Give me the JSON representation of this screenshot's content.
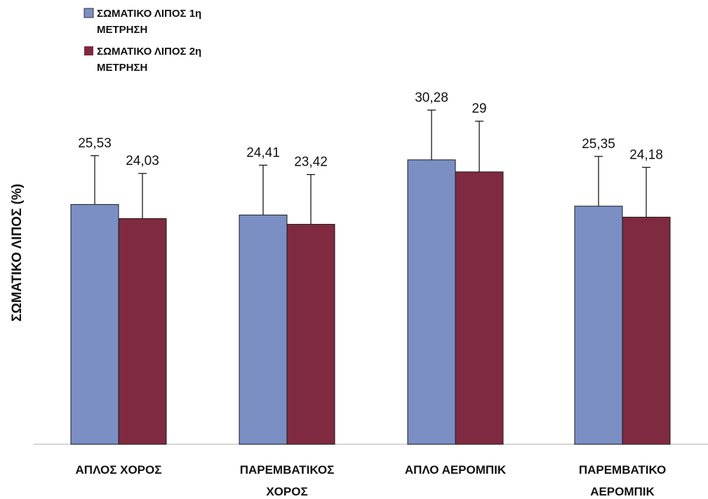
{
  "chart_data": {
    "type": "bar",
    "ylabel": "ΣΩΜΑΤΙΚΟ ΛΙΠΟΣ (%)",
    "categories": [
      [
        "ΑΠΛΟΣ ΧΟΡΟΣ"
      ],
      [
        "ΠΑΡΕΜΒΑΤΙΚΟΣ",
        "ΧΟΡΟΣ"
      ],
      [
        "ΑΠΛΟ ΑΕΡΟΜΠΙΚ"
      ],
      [
        "ΠΑΡΕΜΒΑΤΙΚΟ",
        "ΑΕΡΟΜΠΙΚ"
      ]
    ],
    "series": [
      {
        "name": [
          "ΣΩΜΑΤΙΚΟ ΛΙΠΟΣ  1η",
          "ΜΕΤΡΗΣΗ"
        ],
        "color": "#7b8fc4",
        "values": [
          25.53,
          24.41,
          30.28,
          25.35
        ],
        "labels": [
          "25,53",
          "24,41",
          "30,28",
          "25,35"
        ],
        "errors": [
          5.2,
          5.3,
          5.3,
          5.3
        ]
      },
      {
        "name": [
          "ΣΩΜΑΤΙΚΟ ΛΙΠΟΣ 2η",
          "ΜΕΤΡΗΣΗ"
        ],
        "color": "#7f2a40",
        "values": [
          24.03,
          23.42,
          29,
          24.18
        ],
        "labels": [
          "24,03",
          "23,42",
          "29",
          "24,18"
        ],
        "errors": [
          4.8,
          5.3,
          5.4,
          5.3
        ]
      }
    ],
    "ylim": [
      0,
      47.3
    ],
    "grid": false,
    "legend_position": "top-left"
  }
}
